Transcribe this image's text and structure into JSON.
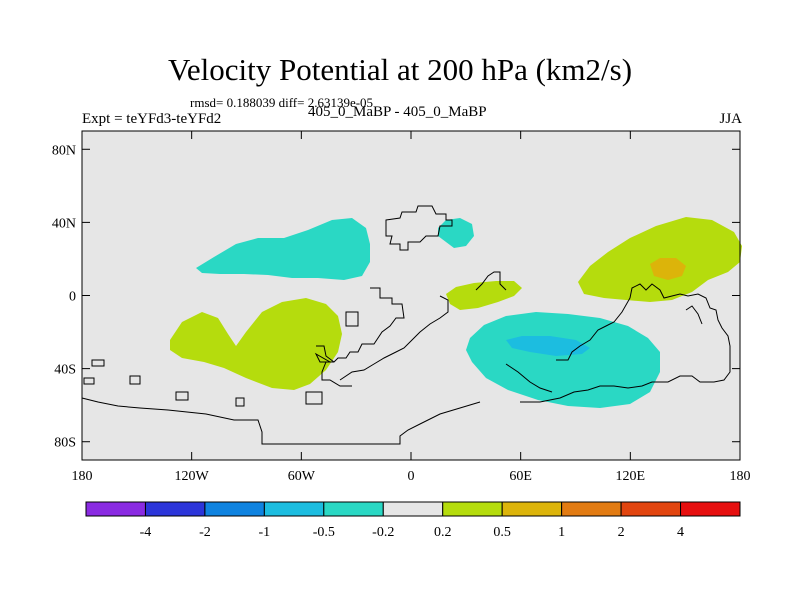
{
  "title": "Velocity Potential at 200 hPa (km2/s)",
  "stats_line": "rmsd= 0.188039 diff= 2.63139e-05",
  "expt_label": "Expt = teYFd3-teYFd2",
  "subtitle": "405_0_MaBP - 405_0_MaBP",
  "season": "JJA",
  "map": {
    "projection": "cylindrical equidistant",
    "lon_range": [
      -180,
      180
    ],
    "lat_range": [
      -90,
      90
    ],
    "background_color": "#e6e6e6",
    "y_ticks": [
      {
        "lat": 80,
        "label": "80N"
      },
      {
        "lat": 40,
        "label": "40N"
      },
      {
        "lat": 0,
        "label": "0"
      },
      {
        "lat": -40,
        "label": "40S"
      },
      {
        "lat": -80,
        "label": "80S"
      }
    ],
    "x_ticks": [
      {
        "lon": -180,
        "label": "180"
      },
      {
        "lon": -120,
        "label": "120W"
      },
      {
        "lon": -60,
        "label": "60W"
      },
      {
        "lon": 0,
        "label": "0"
      },
      {
        "lon": 60,
        "label": "60E"
      },
      {
        "lon": 120,
        "label": "120E"
      },
      {
        "lon": 180,
        "label": "180"
      }
    ]
  },
  "colorbar": {
    "colors": [
      "#8a2be2",
      "#2c35d9",
      "#0f83e0",
      "#1cbde0",
      "#2ad8c4",
      "#e6e6e6",
      "#b5dc0d",
      "#dcb40a",
      "#e27b12",
      "#e2450f",
      "#e60f0f"
    ],
    "labels": [
      "-4",
      "-2",
      "-1",
      "-0.5",
      "-0.2",
      "0.2",
      "0.5",
      "1",
      "2",
      "4"
    ]
  },
  "field_colors": {
    "neg_weak": "#2ad8c4",
    "neg_mid": "#1cbde0",
    "pos_weak": "#b5dc0d",
    "pos_mid": "#dcb40a"
  }
}
